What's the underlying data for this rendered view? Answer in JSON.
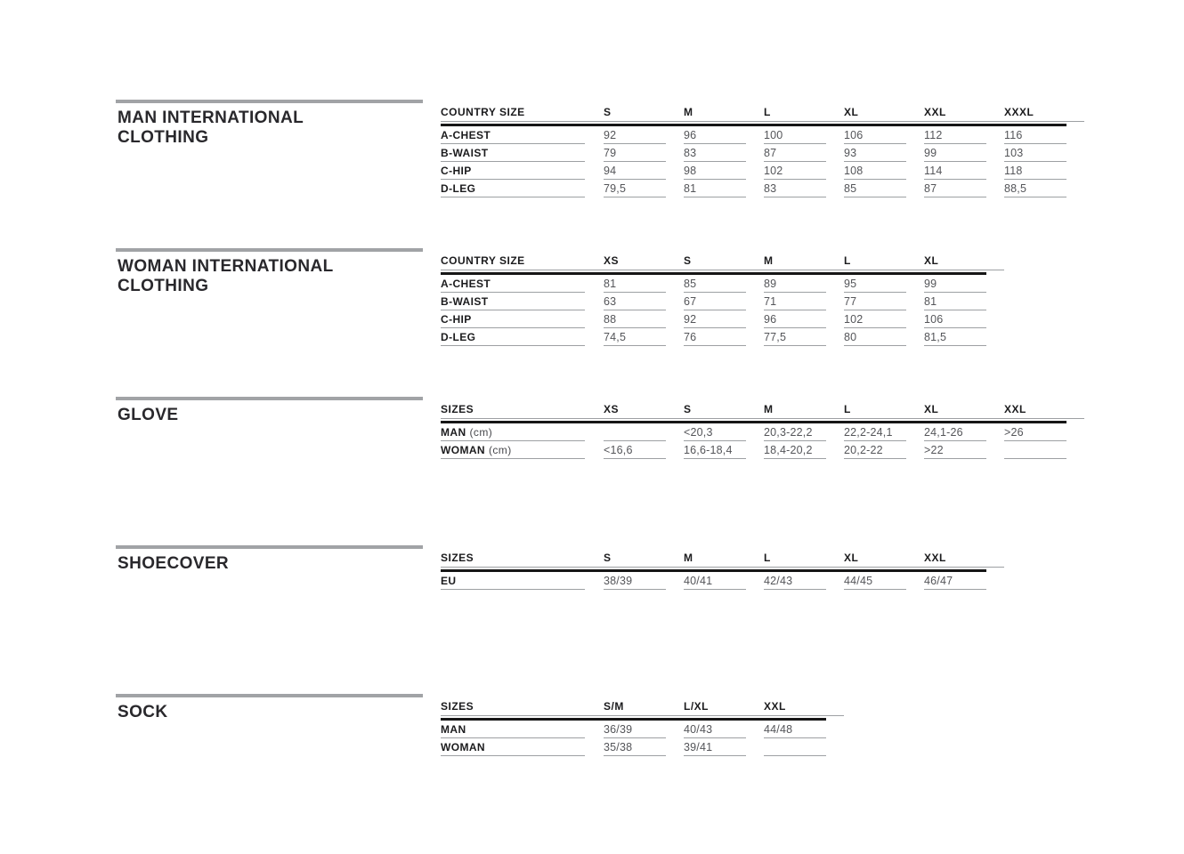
{
  "colors": {
    "background": "#ffffff",
    "divider_bar": "#a1a3a6",
    "title_text": "#29282c",
    "header_text": "#1b1b1d",
    "value_text": "#545559",
    "thin_rule": "#9da0a3",
    "thick_rule": "#161616"
  },
  "sections": [
    {
      "id": "man-international-clothing",
      "title_lines": [
        "MAN INTERNATIONAL",
        "CLOTHING"
      ],
      "table": {
        "header_label": "COUNTRY SIZE",
        "columns": [
          "S",
          "M",
          "L",
          "XL",
          "XXL",
          "XXXL"
        ],
        "rows": [
          {
            "label": "A-CHEST",
            "values": [
              "92",
              "96",
              "100",
              "106",
              "112",
              "116"
            ]
          },
          {
            "label": "B-WAIST",
            "values": [
              "79",
              "83",
              "87",
              "93",
              "99",
              "103"
            ]
          },
          {
            "label": "C-HIP",
            "values": [
              "94",
              "98",
              "102",
              "108",
              "114",
              "118"
            ]
          },
          {
            "label": "D-LEG",
            "values": [
              "79,5",
              "81",
              "83",
              "85",
              "87",
              "88,5"
            ]
          }
        ]
      }
    },
    {
      "id": "woman-international-clothing",
      "title_lines": [
        "WOMAN INTERNATIONAL",
        "CLOTHING"
      ],
      "table": {
        "header_label": "COUNTRY SIZE",
        "columns": [
          "XS",
          "S",
          "M",
          "L",
          "XL"
        ],
        "rows": [
          {
            "label": "A-CHEST",
            "values": [
              "81",
              "85",
              "89",
              "95",
              "99"
            ]
          },
          {
            "label": "B-WAIST",
            "values": [
              "63",
              "67",
              "71",
              "77",
              "81"
            ]
          },
          {
            "label": "C-HIP",
            "values": [
              "88",
              "92",
              "96",
              "102",
              "106"
            ]
          },
          {
            "label": "D-LEG",
            "values": [
              "74,5",
              "76",
              "77,5",
              "80",
              "81,5"
            ]
          }
        ]
      }
    },
    {
      "id": "glove",
      "title_lines": [
        "GLOVE"
      ],
      "table": {
        "header_label": "SIZES",
        "columns": [
          "XS",
          "S",
          "M",
          "L",
          "XL",
          "XXL"
        ],
        "rows": [
          {
            "label": "MAN",
            "suffix": "(cm)",
            "values": [
              "",
              "<20,3",
              "20,3-22,2",
              "22,2-24,1",
              "24,1-26",
              ">26"
            ]
          },
          {
            "label": "WOMAN",
            "suffix": "(cm)",
            "values": [
              "<16,6",
              "16,6-18,4",
              "18,4-20,2",
              "20,2-22",
              ">22",
              ""
            ]
          }
        ]
      }
    },
    {
      "id": "shoecover",
      "title_lines": [
        "SHOECOVER"
      ],
      "table": {
        "header_label": "SIZES",
        "columns": [
          "S",
          "M",
          "L",
          "XL",
          "XXL"
        ],
        "rows": [
          {
            "label": "EU",
            "values": [
              "38/39",
              "40/41",
              "42/43",
              "44/45",
              "46/47"
            ]
          }
        ]
      }
    },
    {
      "id": "sock",
      "title_lines": [
        "SOCK"
      ],
      "table": {
        "header_label": "SIZES",
        "columns": [
          "S/M",
          "L/XL",
          "XXL"
        ],
        "rows": [
          {
            "label": "MAN",
            "values": [
              "36/39",
              "40/43",
              "44/48"
            ]
          },
          {
            "label": "WOMAN",
            "values": [
              "35/38",
              "39/41",
              ""
            ]
          }
        ]
      }
    }
  ]
}
